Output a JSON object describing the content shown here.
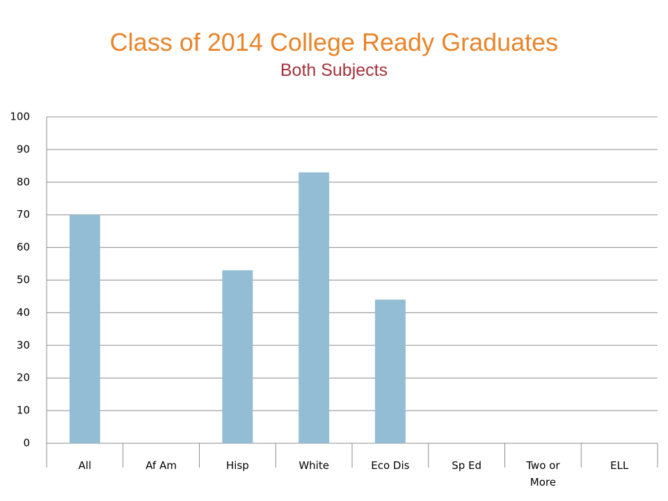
{
  "chart_data": {
    "type": "bar",
    "title": "Class of 2014 College Ready Graduates",
    "subtitle": "Both Subjects",
    "categories": [
      "All",
      "Af Am",
      "Hisp",
      "White",
      "Eco Dis",
      "Sp Ed",
      "Two or More",
      "ELL"
    ],
    "values": [
      70,
      null,
      53,
      83,
      44,
      null,
      null,
      null
    ],
    "color": "#93bdd4",
    "ylim": [
      0,
      100
    ],
    "yticks": [
      0,
      10,
      20,
      30,
      40,
      50,
      60,
      70,
      80,
      90,
      100
    ],
    "grid": true
  }
}
